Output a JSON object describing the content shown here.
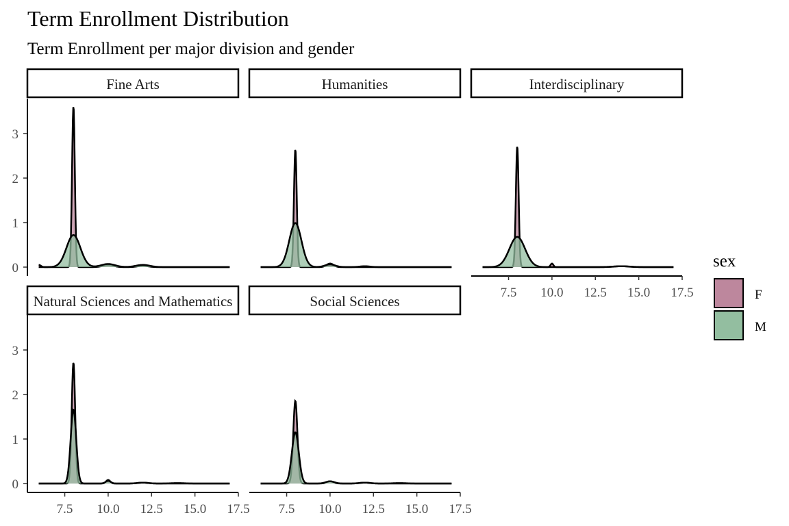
{
  "chart_data": {
    "type": "area",
    "title": "Term Enrollment Distribution",
    "subtitle": "Term Enrollment per major division and gender",
    "xlabel": "",
    "ylabel": "",
    "xlim": [
      5.9,
      17.5
    ],
    "ylim": [
      0,
      3.6
    ],
    "x_ticks": [
      7.5,
      10.0,
      12.5,
      15.0,
      17.5
    ],
    "x_tick_labels": [
      "7.5",
      "10.0",
      "12.5",
      "15.0",
      "17.5"
    ],
    "y_ticks": [
      0,
      1,
      2,
      3
    ],
    "y_tick_labels": [
      "0",
      "1",
      "2",
      "3"
    ],
    "grid": false,
    "legend": {
      "title": "sex",
      "position": "right",
      "entries": [
        {
          "label": "F",
          "color": "#bd879d"
        },
        {
          "label": "M",
          "color": "#93bea0"
        }
      ]
    },
    "series_colors": {
      "F": "#bd879d",
      "M": "#93bea0"
    },
    "panels": [
      {
        "facet": "Fine Arts",
        "series": [
          {
            "name": "F",
            "peaks": [
              {
                "x": 8.0,
                "y": 3.62,
                "sd": 0.08
              },
              {
                "x": 10.0,
                "y": 0.05,
                "sd": 0.3
              },
              {
                "x": 12.0,
                "y": 0.03,
                "sd": 0.3
              },
              {
                "x": 6.0,
                "y": 0.05,
                "sd": 0.12
              }
            ]
          },
          {
            "name": "M",
            "peaks": [
              {
                "x": 8.0,
                "y": 0.72,
                "sd": 0.4
              },
              {
                "x": 10.0,
                "y": 0.07,
                "sd": 0.4
              },
              {
                "x": 12.0,
                "y": 0.05,
                "sd": 0.4
              }
            ]
          }
        ]
      },
      {
        "facet": "Humanities",
        "series": [
          {
            "name": "F",
            "peaks": [
              {
                "x": 8.0,
                "y": 2.65,
                "sd": 0.08
              },
              {
                "x": 10.0,
                "y": 0.08,
                "sd": 0.2
              },
              {
                "x": 12.0,
                "y": 0.02,
                "sd": 0.3
              }
            ]
          },
          {
            "name": "M",
            "peaks": [
              {
                "x": 8.0,
                "y": 0.99,
                "sd": 0.35
              },
              {
                "x": 10.0,
                "y": 0.06,
                "sd": 0.3
              }
            ]
          }
        ]
      },
      {
        "facet": "Interdisciplinary",
        "series": [
          {
            "name": "F",
            "peaks": [
              {
                "x": 8.0,
                "y": 2.72,
                "sd": 0.08
              },
              {
                "x": 10.0,
                "y": 0.08,
                "sd": 0.08
              },
              {
                "x": 14.0,
                "y": 0.02,
                "sd": 0.4
              }
            ]
          },
          {
            "name": "M",
            "peaks": [
              {
                "x": 8.0,
                "y": 0.68,
                "sd": 0.45
              },
              {
                "x": 14.0,
                "y": 0.02,
                "sd": 0.5
              }
            ]
          }
        ]
      },
      {
        "facet": "Natural Sciences and Mathematics",
        "series": [
          {
            "name": "F",
            "peaks": [
              {
                "x": 8.0,
                "y": 2.72,
                "sd": 0.1
              },
              {
                "x": 10.0,
                "y": 0.08,
                "sd": 0.12
              },
              {
                "x": 12.0,
                "y": 0.02,
                "sd": 0.3
              },
              {
                "x": 14.0,
                "y": 0.01,
                "sd": 0.4
              }
            ]
          },
          {
            "name": "M",
            "peaks": [
              {
                "x": 8.0,
                "y": 1.66,
                "sd": 0.16
              },
              {
                "x": 10.0,
                "y": 0.06,
                "sd": 0.15
              },
              {
                "x": 12.0,
                "y": 0.02,
                "sd": 0.3
              }
            ]
          }
        ]
      },
      {
        "facet": "Social Sciences",
        "series": [
          {
            "name": "F",
            "peaks": [
              {
                "x": 8.0,
                "y": 1.86,
                "sd": 0.12
              },
              {
                "x": 10.0,
                "y": 0.05,
                "sd": 0.2
              },
              {
                "x": 12.0,
                "y": 0.02,
                "sd": 0.3
              },
              {
                "x": 14.0,
                "y": 0.01,
                "sd": 0.4
              }
            ]
          },
          {
            "name": "M",
            "peaks": [
              {
                "x": 8.0,
                "y": 1.15,
                "sd": 0.2
              },
              {
                "x": 10.0,
                "y": 0.05,
                "sd": 0.25
              },
              {
                "x": 12.0,
                "y": 0.02,
                "sd": 0.3
              }
            ]
          }
        ]
      }
    ]
  }
}
